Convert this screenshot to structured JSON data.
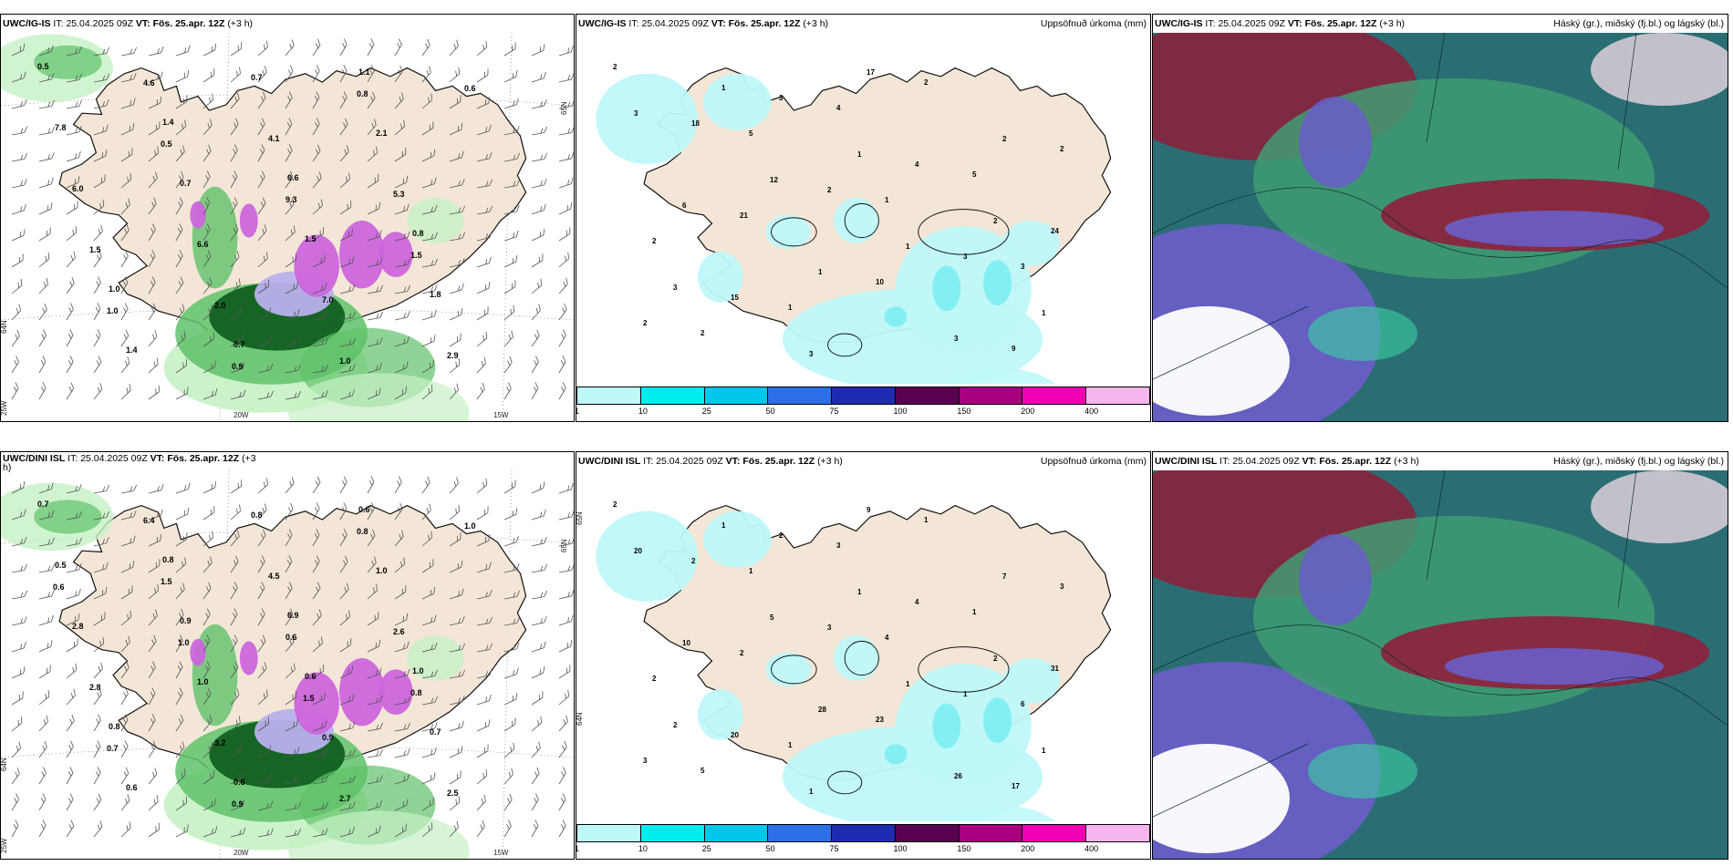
{
  "panels": [
    {
      "id": "wind-ig",
      "model": "UWC/IG-IS",
      "it_label": "IT:",
      "it": "25.04.2025 09Z",
      "vt_label": "VT:",
      "vt": "Fös. 25.apr. 12Z",
      "offset": "(+3 h)",
      "right_title": "",
      "numbers": [
        "0.5",
        "1.4",
        "0.6",
        "0.8",
        "1.0",
        "0.7",
        "1.1",
        "7.8",
        "0.7",
        "1.5",
        "1.8",
        "1.4",
        "0.7",
        "2.1",
        "6.0",
        "6.6",
        "7.0",
        "2.9",
        "4.6",
        "4.1",
        "5.3",
        "1.5",
        "2.0",
        "1.0",
        "0.6",
        "0.5",
        "9.3",
        "1.5",
        "1.0",
        "0.9",
        "0.8"
      ],
      "lon_labels": [
        "20W",
        "15W"
      ],
      "lat_labels": [
        "65N",
        "64N",
        "25W"
      ]
    },
    {
      "id": "precip-ig",
      "model": "UWC/IG-IS",
      "it_label": "IT:",
      "it": "25.04.2025 09Z",
      "vt_label": "VT:",
      "vt": "Fös. 25.apr. 12Z",
      "offset": "(+3 h)",
      "right_title": "Uppsöfnuð úrkoma (mm)",
      "numbers": [
        "2",
        "5",
        "1",
        "3",
        "2",
        "4",
        "5",
        "2",
        "1",
        "2",
        "2",
        "21",
        "10",
        "9",
        "18",
        "2",
        "3",
        "2",
        "3",
        "4",
        "24",
        "15",
        "17",
        "2",
        "6",
        "1",
        "3",
        "3",
        "12",
        "1",
        "1",
        "1",
        "1",
        "2",
        "3",
        "3"
      ]
    },
    {
      "id": "cloud-ig",
      "model": "UWC/IG-IS",
      "it_label": "IT:",
      "it": "25.04.2025 09Z",
      "vt_label": "VT:",
      "vt": "Fös. 25.apr. 12Z",
      "offset": "(+3 h)",
      "right_title": "Háský (gr.), miðský (fj.bl.) og lágský (bl.)"
    },
    {
      "id": "wind-dini",
      "model": "UWC/DINI ISL",
      "it_label": "IT:",
      "it": "25.04.2025 09Z",
      "vt_label": "VT:",
      "vt": "Fös. 25.apr. 12Z",
      "offset": "(+3",
      "offset2": "h)",
      "right_title": "",
      "numbers": [
        "0.7",
        "0.8",
        "0.9",
        "1.0",
        "0.8",
        "0.6",
        "0.6",
        "0.5",
        "0.9",
        "0.6",
        "0.7",
        "0.6",
        "0.8",
        "1.0",
        "2.8",
        "1.0",
        "0.9",
        "2.5",
        "6.4",
        "4.5",
        "2.6",
        "2.8",
        "3.2",
        "2.7",
        "1.0",
        "1.5",
        "0.6",
        "0.8",
        "0.7",
        "0.9",
        "0.8",
        "0.6",
        "1.0",
        "1.5"
      ],
      "lon_labels": [
        "20W",
        "15W"
      ],
      "lat_labels": [
        "65N",
        "64N",
        "25W"
      ]
    },
    {
      "id": "precip-dini",
      "model": "UWC/DINI ISL",
      "it_label": "IT:",
      "it": "25.04.2025 09Z",
      "vt_label": "VT:",
      "vt": "Fös. 25.apr. 12Z",
      "offset": "(+3 h)",
      "right_title": "Uppsöfnuð úrkoma (mm)",
      "numbers": [
        "2",
        "1",
        "4",
        "6",
        "5",
        "3",
        "1",
        "2",
        "1",
        "1",
        "3",
        "2",
        "23",
        "17",
        "2",
        "3",
        "1",
        "3",
        "2",
        "4",
        "31",
        "20",
        "9",
        "7",
        "10",
        "28",
        "26",
        "20",
        "5",
        "1",
        "1",
        "1",
        "1",
        "2",
        "2",
        "1"
      ],
      "lat_labels": [
        "65N",
        "64N"
      ]
    },
    {
      "id": "cloud-dini",
      "model": "UWC/DINI ISL",
      "it_label": "IT:",
      "it": "25.04.2025 09Z",
      "vt_label": "VT:",
      "vt": "Fös. 25.apr. 12Z",
      "offset": "(+3 h)",
      "right_title": "Háský (gr.), miðský (fj.bl.) og lágský (bl.)"
    }
  ],
  "colorbar": {
    "labels": [
      "1",
      "10",
      "25",
      "50",
      "75",
      "100",
      "150",
      "200",
      "400"
    ],
    "colors": [
      "#bff8f9",
      "#00ecee",
      "#00c7ea",
      "#2c6fe6",
      "#1c2bb0",
      "#5a0050",
      "#a80080",
      "#f000b5",
      "#f6b5ee"
    ]
  },
  "colors": {
    "land": "#f3e6d7",
    "coast": "#111111",
    "ocean": "#ffffff",
    "precip_light": "#bff8f9",
    "precip_mid": "#7feef2",
    "wind_light": "#c6f1c4",
    "wind_mid": "#5fc26a",
    "wind_dark": "#0c5a1c",
    "purple": "#cc66dd",
    "lavender": "#b9b0ec",
    "cloud_teal": "#2a6e73",
    "cloud_green": "#3f9c72",
    "cloud_red": "#8e1f3b",
    "cloud_blue": "#6a5dc9"
  }
}
